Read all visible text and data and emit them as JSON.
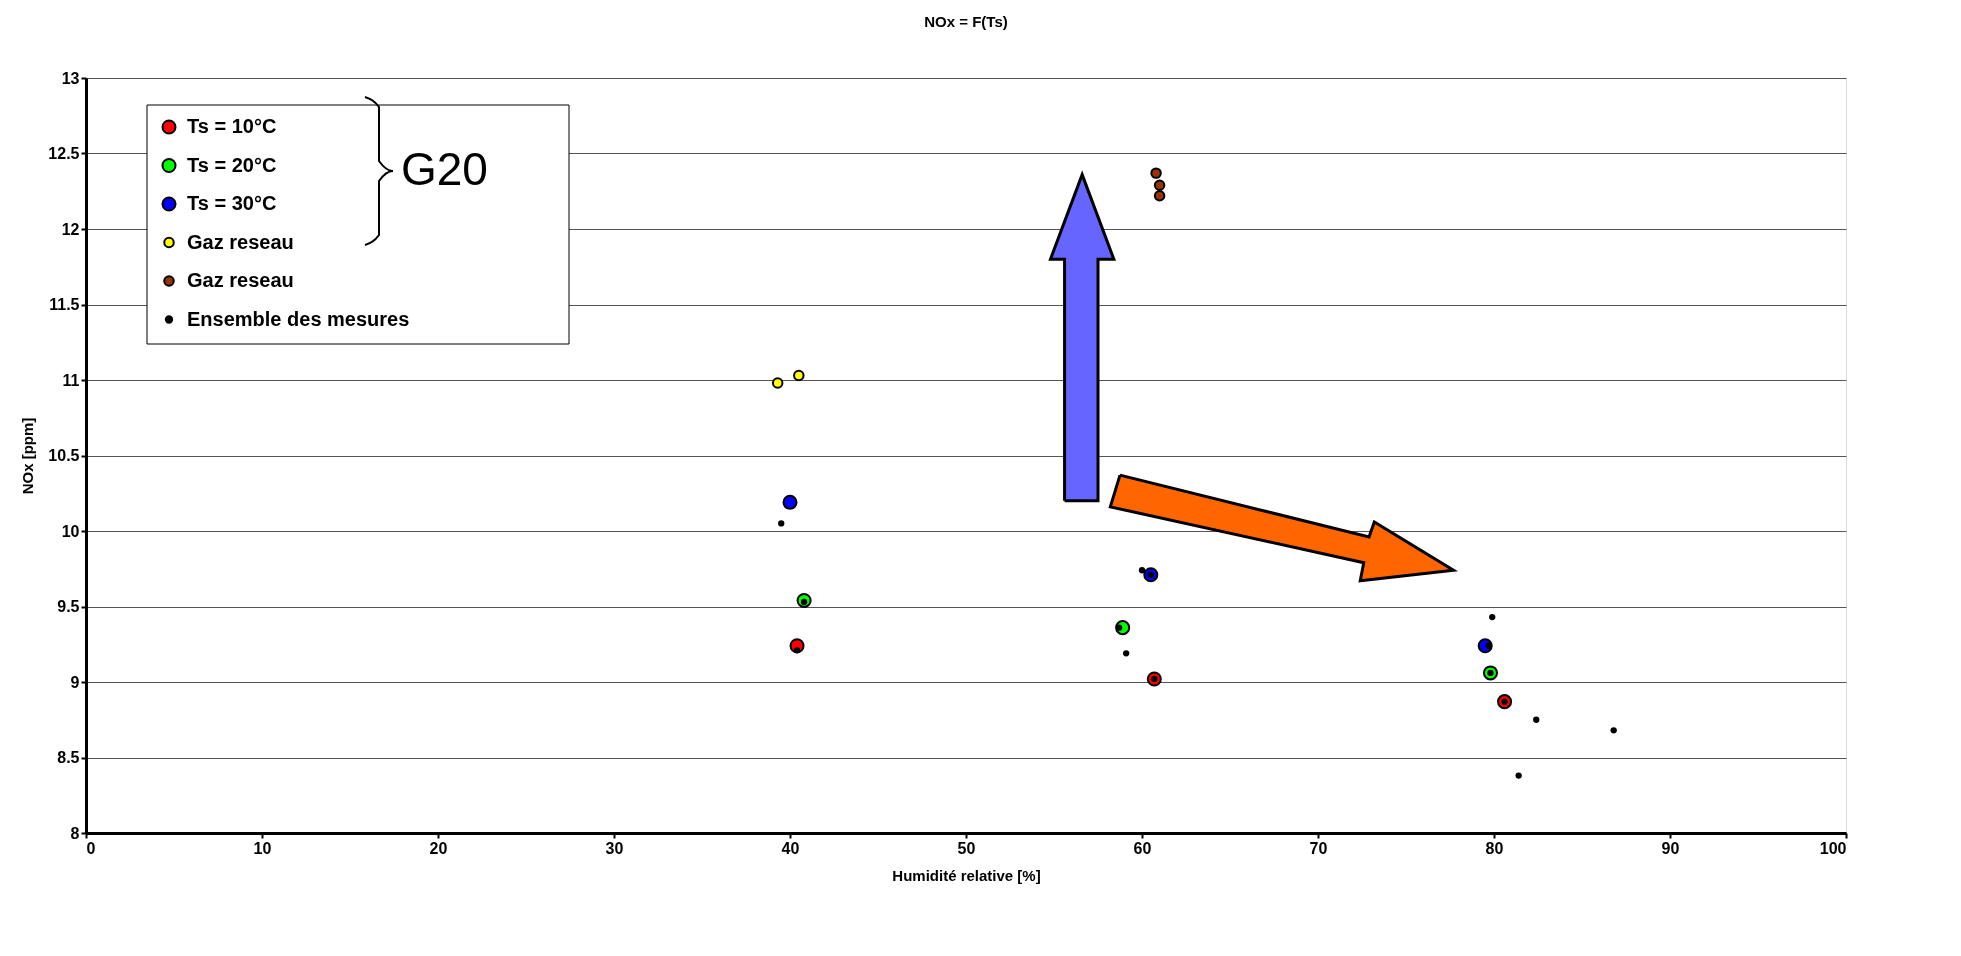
{
  "chart_data": {
    "type": "scatter",
    "title": "NOx = F(Ts)",
    "xlabel": "Humidité relative [%]",
    "ylabel": "NOx [ppm]",
    "xlim": [
      0,
      100
    ],
    "xticks": [
      0,
      10,
      20,
      30,
      40,
      50,
      60,
      70,
      80,
      90,
      100
    ],
    "ylim": [
      8,
      13
    ],
    "yticks": [
      8,
      8.5,
      9,
      9.5,
      10,
      10.5,
      11,
      11.5,
      12,
      12.5,
      13
    ],
    "grid": "y",
    "legend": "top left",
    "marker": "circle",
    "annotations": [
      "G20"
    ],
    "series": [
      {
        "name": "Ts = 10°C",
        "color": "#ff0000",
        "x": [
          40.4,
          60.7,
          80.6
        ],
        "values": [
          9.24,
          9.02,
          8.87
        ]
      },
      {
        "name": "Ts = 20°C",
        "color": "#00ff00",
        "x": [
          40.8,
          58.9,
          79.8
        ],
        "values": [
          9.54,
          9.36,
          9.06
        ]
      },
      {
        "name": "Ts = 30°C",
        "color": "#0000ff",
        "x": [
          40.0,
          60.5,
          79.5
        ],
        "values": [
          10.19,
          9.71,
          9.24
        ]
      },
      {
        "name": "Gaz reseau",
        "color": "#ffff00",
        "x": [
          39.3,
          40.5
        ],
        "values": [
          10.98,
          11.03
        ]
      },
      {
        "name": "Gaz reseau",
        "color": "#993300",
        "x": [
          60.8,
          61.0,
          61.0
        ],
        "values": [
          12.37,
          12.29,
          12.22
        ]
      },
      {
        "name": "Ensemble des mesures",
        "color": "#000000",
        "x": [
          39.5,
          40.8,
          40.4,
          60.0,
          60.5,
          58.7,
          59.1,
          60.7,
          79.9,
          79.7,
          79.8,
          80.6,
          82.4,
          86.8,
          81.4
        ],
        "values": [
          10.05,
          9.53,
          9.21,
          9.74,
          9.71,
          9.36,
          9.19,
          9.02,
          9.43,
          9.24,
          9.06,
          8.87,
          8.75,
          8.68,
          8.38
        ]
      }
    ]
  }
}
